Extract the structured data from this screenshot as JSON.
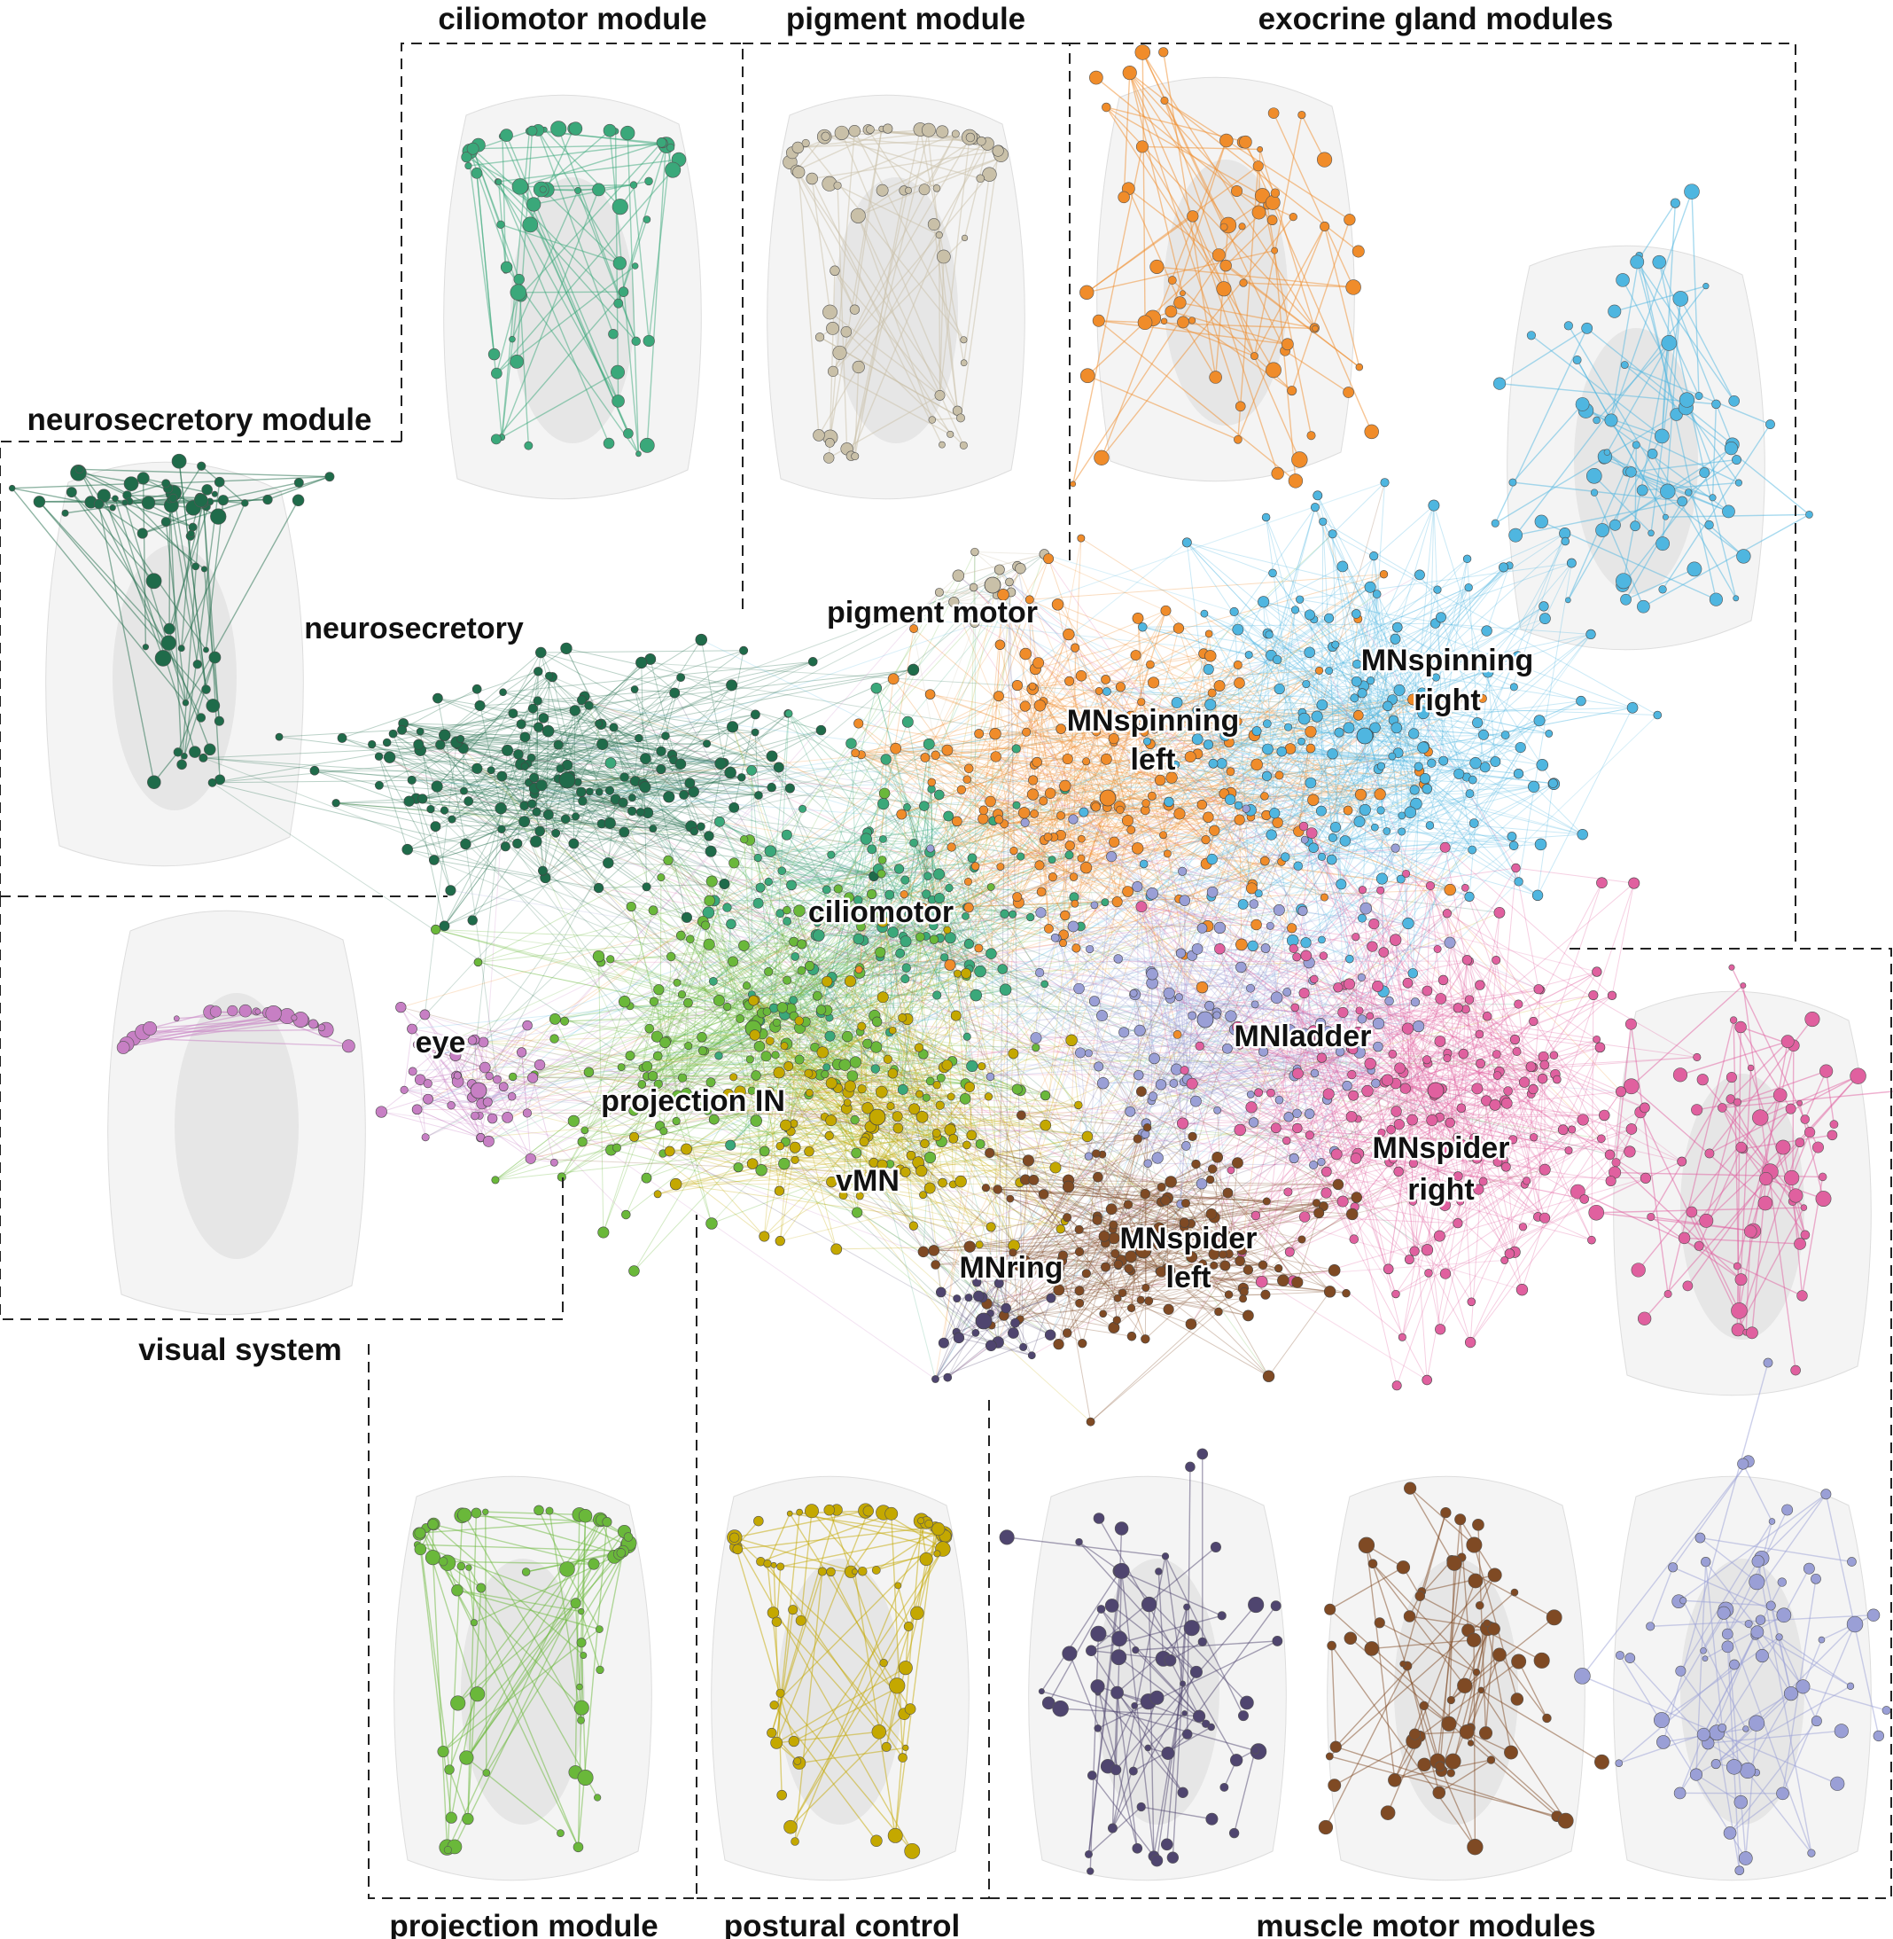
{
  "panel_titles": {
    "ciliomotor": "ciliomotor module",
    "pigment": "pigment module",
    "exocrine": "exocrine gland modules",
    "neurosecretory": "neurosecretory module",
    "visual": "visual system",
    "projection": "projection module",
    "postural": "postural control",
    "muscle": "muscle motor modules"
  },
  "network_labels": {
    "neurosecretory": "neurosecretory",
    "pigment_motor": "pigment motor",
    "mnspinning_right_1": "MNspinning",
    "mnspinning_right_2": "right",
    "mnspinning_left_1": "MNspinning",
    "mnspinning_left_2": "left",
    "ciliomotor": "ciliomotor",
    "eye": "eye",
    "projection_in": "projection IN",
    "mnladder": "MNladder",
    "vmn": "vMN",
    "mnspider_right_1": "MNspider",
    "mnspider_right_2": "right",
    "mnspider_left_1": "MNspider",
    "mnspider_left_2": "left",
    "mnring": "MNring"
  },
  "colors": {
    "neurosecretory": "#1f6b4a",
    "ciliomotor": "#3aa87a",
    "projection_in": "#6ab83a",
    "vmn": "#c4a800",
    "eye": "#c77fc4",
    "pigment_motor": "#c9c0a8",
    "mnspinning_left": "#f08c2a",
    "mnspinning_right": "#4fb6e0",
    "mnladder": "#9a9fd6",
    "mnspider_right": "#e0609f",
    "mnspider_left": "#7f4a24",
    "mnring": "#4f456f"
  }
}
